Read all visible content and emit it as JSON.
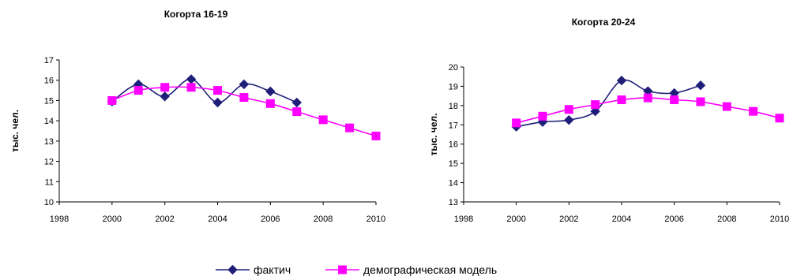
{
  "chart_data": [
    {
      "type": "line",
      "title": "Когорта 16-19",
      "xlabel": "",
      "ylabel": "тыс. чел.",
      "xlim": [
        1998,
        2010
      ],
      "ylim": [
        10,
        17
      ],
      "xticks": [
        1998,
        2000,
        2002,
        2004,
        2006,
        2008,
        2010
      ],
      "yticks": [
        10,
        11,
        12,
        13,
        14,
        15,
        16,
        17
      ],
      "grid": false,
      "series": [
        {
          "name": "фактич",
          "color": "#1F1F7A",
          "marker": "diamond",
          "smooth": true,
          "x": [
            2000,
            2001,
            2002,
            2003,
            2004,
            2005,
            2006,
            2007
          ],
          "y": [
            14.95,
            15.8,
            15.2,
            16.05,
            14.9,
            15.8,
            15.45,
            14.9
          ]
        },
        {
          "name": "демографическая модель",
          "color": "#FF00FF",
          "marker": "square",
          "smooth": true,
          "x": [
            2000,
            2001,
            2002,
            2003,
            2004,
            2005,
            2006,
            2007,
            2008,
            2009,
            2010
          ],
          "y": [
            15.0,
            15.5,
            15.65,
            15.65,
            15.5,
            15.15,
            14.85,
            14.45,
            14.05,
            13.65,
            13.25
          ]
        }
      ]
    },
    {
      "type": "line",
      "title": "Когорта 20-24",
      "xlabel": "",
      "ylabel": "тыс. чел.",
      "xlim": [
        1998,
        2010
      ],
      "ylim": [
        13,
        20
      ],
      "xticks": [
        1998,
        2000,
        2002,
        2004,
        2006,
        2008,
        2010
      ],
      "yticks": [
        13,
        14,
        15,
        16,
        17,
        18,
        19,
        20
      ],
      "grid": false,
      "series": [
        {
          "name": "фактич",
          "color": "#1F1F7A",
          "marker": "diamond",
          "smooth": true,
          "x": [
            2000,
            2001,
            2002,
            2003,
            2004,
            2005,
            2006,
            2007
          ],
          "y": [
            16.9,
            17.15,
            17.25,
            17.7,
            19.3,
            18.75,
            18.65,
            19.05
          ]
        },
        {
          "name": "демографическая модель",
          "color": "#FF00FF",
          "marker": "square",
          "smooth": true,
          "x": [
            2000,
            2001,
            2002,
            2003,
            2004,
            2005,
            2006,
            2007,
            2008,
            2009,
            2010
          ],
          "y": [
            17.1,
            17.45,
            17.8,
            18.05,
            18.3,
            18.4,
            18.3,
            18.2,
            17.95,
            17.7,
            17.35
          ]
        }
      ]
    }
  ],
  "legend": {
    "position": "bottom-center",
    "items": [
      {
        "label": "фактич",
        "color": "#1F1F7A",
        "marker": "diamond"
      },
      {
        "label": "демографическая модель",
        "color": "#FF00FF",
        "marker": "square"
      }
    ]
  }
}
